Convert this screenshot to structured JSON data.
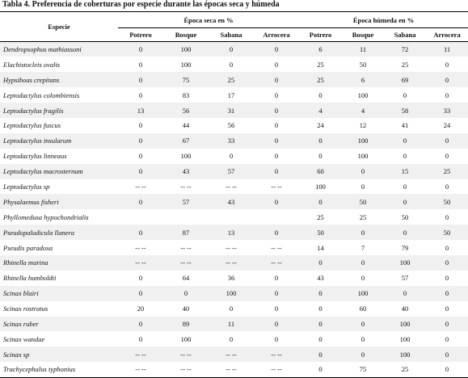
{
  "caption": "Tabla 4. Preferencia de coberturas por especie durante las épocas seca y húmeda",
  "header": {
    "species": "Especie",
    "dry_season": "Época seca en %",
    "wet_season": "Época húmeda en %",
    "columns": [
      "Potrero",
      "Bosque",
      "Sabana",
      "Arrocera",
      "Potrero",
      "Bosque",
      "Sabana",
      "Arrocera"
    ]
  },
  "rows": [
    {
      "species": "Dendropsophus mathiassoni",
      "values": [
        "0",
        "100",
        "0",
        "0",
        "6",
        "11",
        "72",
        "11"
      ]
    },
    {
      "species": "Elachistocleis ovalis",
      "values": [
        "0",
        "100",
        "0",
        "0",
        "25",
        "50",
        "25",
        "0"
      ]
    },
    {
      "species": "Hypsiboas crepitans",
      "values": [
        "0",
        "75",
        "25",
        "0",
        "25",
        "6",
        "69",
        "0"
      ]
    },
    {
      "species": "Leptodactylus colombiensis",
      "values": [
        "0",
        "83",
        "17",
        "0",
        "0",
        "100",
        "0",
        "0"
      ]
    },
    {
      "species": "Leptodactylus fragilis",
      "values": [
        "13",
        "56",
        "31",
        "0",
        "4",
        "4",
        "58",
        "33"
      ]
    },
    {
      "species": "Leptodactylus fuscus",
      "values": [
        "0",
        "44",
        "56",
        "0",
        "24",
        "12",
        "41",
        "24"
      ]
    },
    {
      "species": "Leptodactylus insularum",
      "values": [
        "0",
        "67",
        "33",
        "0",
        "0",
        "100",
        "0",
        "0"
      ]
    },
    {
      "species": "Leptodactylus linneaus",
      "values": [
        "0",
        "100",
        "0",
        "0",
        "0",
        "100",
        "0",
        "0"
      ]
    },
    {
      "species": "Leptodactylus macrosternum",
      "values": [
        "0",
        "43",
        "57",
        "0",
        "60",
        "0",
        "15",
        "25"
      ]
    },
    {
      "species": "Leptodactylus sp",
      "values": [
        "-- --",
        "-- --",
        "-- --",
        "-- --",
        "100",
        "0",
        "0",
        "0"
      ]
    },
    {
      "species": "Physalaemus fisheri",
      "values": [
        "0",
        "57",
        "43",
        "0",
        "0",
        "50",
        "0",
        "50"
      ]
    },
    {
      "species": "Phyllomedusa hypochondrialis",
      "values": [
        "",
        "",
        "",
        "",
        "25",
        "25",
        "50",
        "0"
      ]
    },
    {
      "species": "Pseudopaludicula llanera",
      "values": [
        "0",
        "87",
        "13",
        "0",
        "50",
        "0",
        "0",
        "50"
      ]
    },
    {
      "species": "Pseudis paradoxa",
      "values": [
        "-- --",
        "-- --",
        "-- --",
        "-- --",
        "14",
        "7",
        "79",
        "0"
      ]
    },
    {
      "species": "Rhinella marina",
      "values": [
        "-- --",
        "-- --",
        "-- --",
        "-- --",
        "0",
        "0",
        "100",
        "0"
      ]
    },
    {
      "species": "Rhinella humboldti",
      "values": [
        "0",
        "64",
        "36",
        "0",
        "43",
        "0",
        "57",
        "0"
      ]
    },
    {
      "species": "Scinax blairi",
      "values": [
        "0",
        "0",
        "100",
        "0",
        "0",
        "100",
        "0",
        "0"
      ]
    },
    {
      "species": "Scinax rostratus",
      "values": [
        "20",
        "40",
        "0",
        "0",
        "0",
        "60",
        "40",
        "0"
      ]
    },
    {
      "species": "Scinax ruber",
      "values": [
        "0",
        "89",
        "11",
        "0",
        "0",
        "0",
        "100",
        "0"
      ]
    },
    {
      "species": "Scinax wandae",
      "values": [
        "0",
        "100",
        "0",
        "0",
        "0",
        "0",
        "100",
        "0"
      ]
    },
    {
      "species": "Scinax sp",
      "values": [
        "-- --",
        "-- --",
        "-- --",
        "-- --",
        "0",
        "0",
        "100",
        "0"
      ]
    },
    {
      "species": "Trachycephalus typhonius",
      "values": [
        "-- --",
        "-- --",
        "-- --",
        "-- --",
        "0",
        "75",
        "25",
        "0"
      ]
    }
  ]
}
